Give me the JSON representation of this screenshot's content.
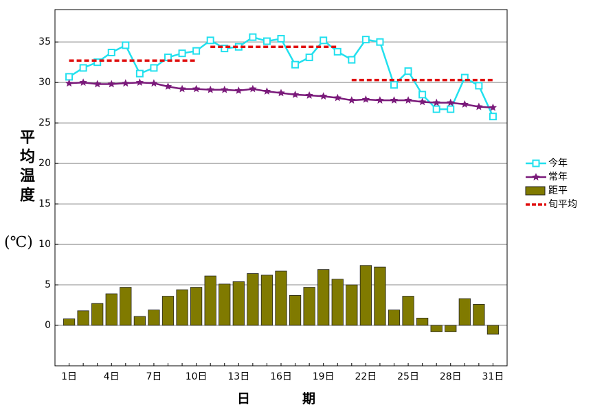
{
  "chart_data": {
    "type": "line",
    "xlabel": "日　　　　期",
    "ylabel": "平均温度",
    "ylabel_unit": "(℃)",
    "categories": [
      "1日",
      null,
      null,
      "4日",
      null,
      null,
      "7日",
      null,
      null,
      "10日",
      null,
      null,
      "13日",
      null,
      null,
      "16日",
      null,
      null,
      "19日",
      null,
      null,
      "22日",
      null,
      null,
      "25日",
      null,
      null,
      "28日",
      null,
      null,
      "31日"
    ],
    "ylim": [
      -5,
      39
    ],
    "yticks": [
      0,
      5,
      10,
      15,
      20,
      25,
      30,
      35
    ],
    "grid": true,
    "legend": "right",
    "series": [
      {
        "name": "今年",
        "color": "#22e0ee",
        "marker": "square",
        "values": [
          30.7,
          31.8,
          32.5,
          33.7,
          34.6,
          31.1,
          31.8,
          33.1,
          33.6,
          33.9,
          35.2,
          34.2,
          34.4,
          35.6,
          35.1,
          35.4,
          32.2,
          33.1,
          35.2,
          33.8,
          32.8,
          35.3,
          35.0,
          29.7,
          31.4,
          28.5,
          26.7,
          26.7,
          30.6,
          29.6,
          25.8
        ]
      },
      {
        "name": "常年",
        "color": "#7a1a7a",
        "marker": "star",
        "values": [
          29.9,
          30.0,
          29.8,
          29.8,
          29.9,
          30.0,
          29.9,
          29.5,
          29.2,
          29.2,
          29.1,
          29.1,
          29.0,
          29.2,
          28.9,
          28.7,
          28.5,
          28.4,
          28.3,
          28.1,
          27.8,
          27.9,
          27.8,
          27.8,
          27.8,
          27.6,
          27.5,
          27.5,
          27.3,
          27.0,
          26.9
        ]
      },
      {
        "name": "距平",
        "color": "#807a00",
        "kind": "bar",
        "values": [
          0.8,
          1.8,
          2.7,
          3.9,
          4.7,
          1.1,
          1.9,
          3.6,
          4.4,
          4.7,
          6.1,
          5.1,
          5.4,
          6.4,
          6.2,
          6.7,
          3.7,
          4.7,
          6.9,
          5.7,
          5.0,
          7.4,
          7.2,
          1.9,
          3.6,
          0.9,
          -0.8,
          -0.8,
          3.3,
          2.6,
          -1.1
        ]
      }
    ],
    "dekad_average": {
      "name": "旬平均",
      "color": "#e01010",
      "values": [
        32.7,
        34.4,
        30.3
      ],
      "x_start": [
        1,
        11,
        21
      ],
      "x_end": [
        10,
        20,
        31
      ]
    }
  }
}
